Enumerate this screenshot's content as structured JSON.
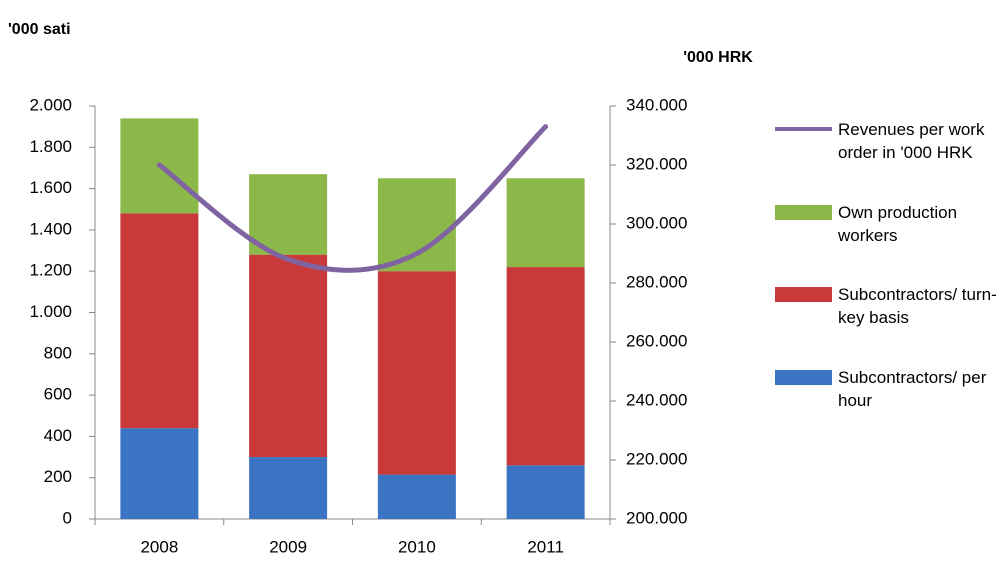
{
  "chart_data": {
    "type": "bar",
    "stacked": true,
    "y_label": "'000 sati",
    "y2_label": "'000 HRK",
    "categories": [
      "2008",
      "2009",
      "2010",
      "2011"
    ],
    "series": [
      {
        "name": "Subcontractors/ per hour",
        "type": "bar",
        "color": "#3c74c4",
        "values": [
          440,
          300,
          215,
          260
        ]
      },
      {
        "name": "Subcontractors/ turn-key basis",
        "type": "bar",
        "color": "#c9393a",
        "values": [
          1040,
          980,
          985,
          960
        ]
      },
      {
        "name": "Own production workers",
        "type": "bar",
        "color": "#8cb84a",
        "values": [
          460,
          390,
          450,
          430
        ]
      },
      {
        "name": "Revenues per work order in '000 HRK",
        "type": "line",
        "axis": "y2",
        "color": "#8064a2",
        "values": [
          320000,
          288000,
          290000,
          333000
        ]
      }
    ],
    "ylim": [
      0,
      2000
    ],
    "yticks": [
      0,
      200,
      400,
      600,
      800,
      {
        "value": 1000,
        "label": "1.000"
      },
      {
        "value": 1200,
        "label": "1.200"
      },
      {
        "value": 1400,
        "label": "1.400"
      },
      {
        "value": 1600,
        "label": "1.600"
      },
      {
        "value": 1800,
        "label": "1.800"
      },
      {
        "value": 2000,
        "label": "2.000"
      }
    ],
    "y2lim": [
      200000,
      340000
    ],
    "y2ticks": [
      {
        "value": 200000,
        "label": "200.000"
      },
      {
        "value": 220000,
        "label": "220.000"
      },
      {
        "value": 240000,
        "label": "240.000"
      },
      {
        "value": 260000,
        "label": "260.000"
      },
      {
        "value": 280000,
        "label": "280.000"
      },
      {
        "value": 300000,
        "label": "300.000"
      },
      {
        "value": 320000,
        "label": "320.000"
      },
      {
        "value": 340000,
        "label": "340.000"
      }
    ],
    "legend": "right"
  }
}
